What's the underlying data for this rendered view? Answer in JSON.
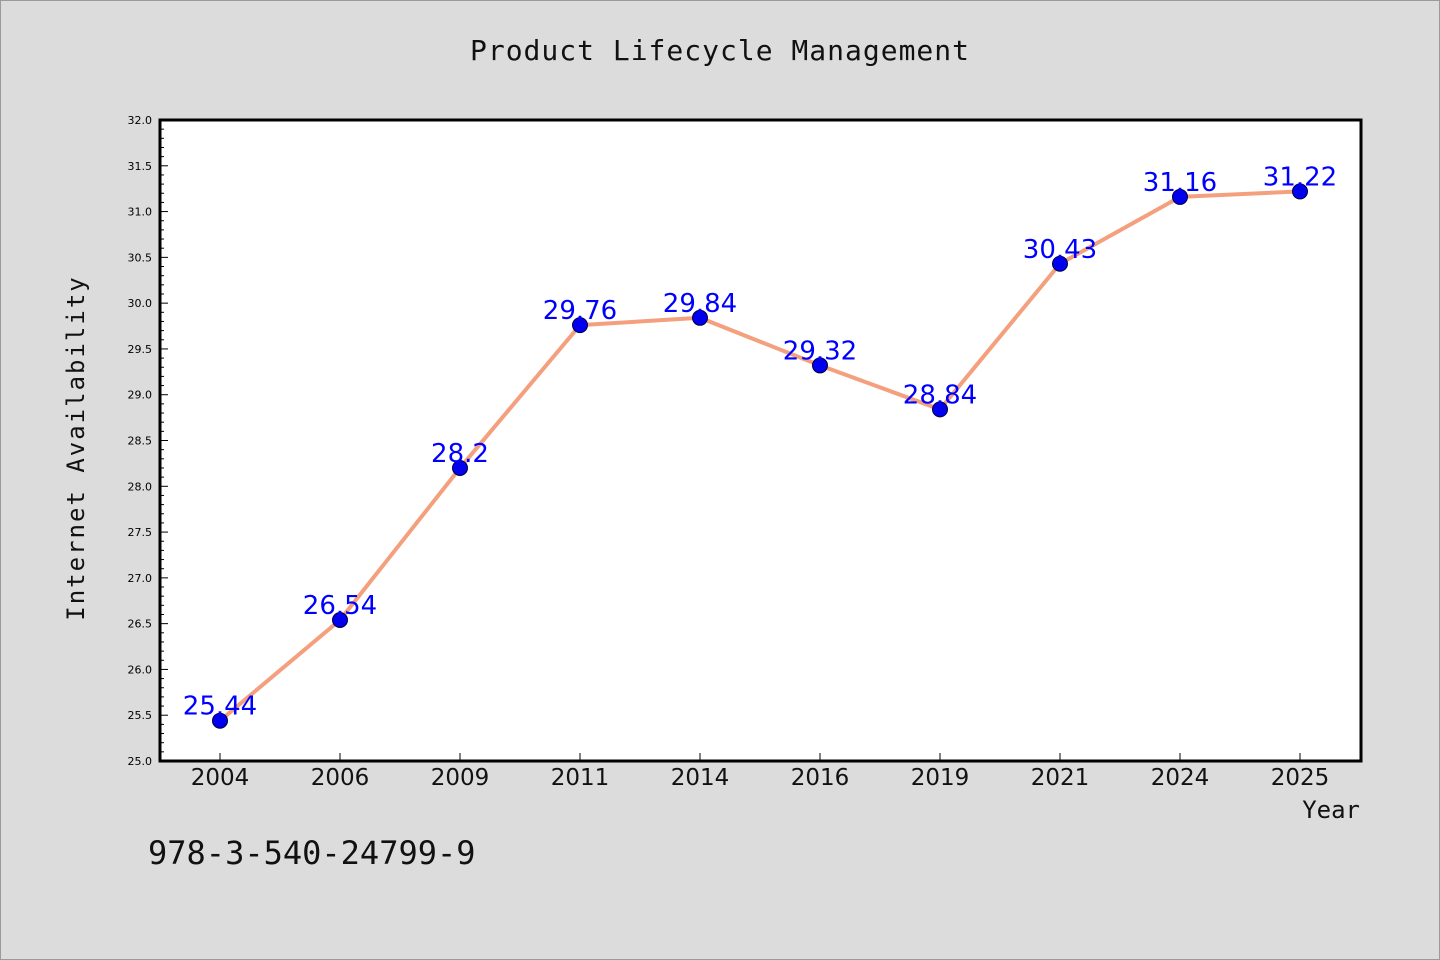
{
  "chart_data": {
    "type": "line",
    "title": "Product Lifecycle Management",
    "xlabel": "Year",
    "ylabel": "Internet Availability",
    "categories": [
      "2004",
      "2006",
      "2009",
      "2011",
      "2014",
      "2016",
      "2019",
      "2021",
      "2024",
      "2025"
    ],
    "values": [
      25.44,
      26.54,
      28.2,
      29.76,
      29.84,
      29.32,
      28.84,
      30.43,
      31.16,
      31.22
    ],
    "data_labels": [
      "25.44",
      "26.54",
      "28.2",
      "29.76",
      "29.84",
      "29.32",
      "28.84",
      "30.43",
      "31.16",
      "31.22"
    ],
    "ylim": [
      25.0,
      32.0
    ],
    "y_ticks": [
      "25.0",
      "25.5",
      "26.0",
      "26.5",
      "27.0",
      "27.5",
      "28.0",
      "28.5",
      "29.0",
      "29.5",
      "30.0",
      "30.5",
      "31.0",
      "31.5",
      "32.0"
    ],
    "grid": false,
    "line_color": "#f4a07e",
    "marker_color": "#0000ee",
    "label_color": "#0000ff"
  },
  "annotation": {
    "isbn": "978-3-540-24799-9"
  }
}
